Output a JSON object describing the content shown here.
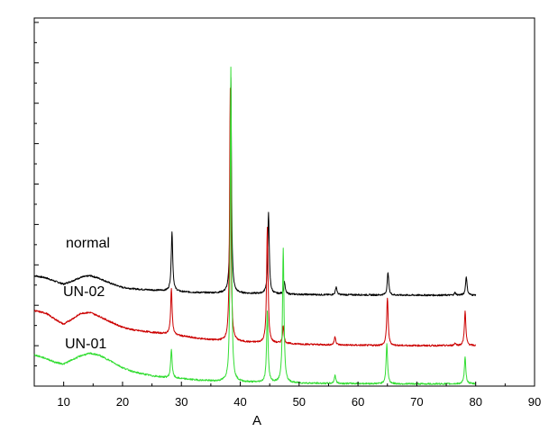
{
  "chart_data": {
    "type": "line",
    "title": "",
    "xlabel": "A",
    "ylabel": "",
    "xlim": [
      5,
      90
    ],
    "ylim": [
      0,
      100
    ],
    "xticks": [
      10,
      20,
      30,
      40,
      50,
      60,
      70,
      80,
      90
    ],
    "x_range": [
      5,
      80
    ],
    "grid": false,
    "legend": "none",
    "series": [
      {
        "name": "normal",
        "color": "#000000",
        "baseline": 24.7,
        "points": [
          [
            5,
            30.0
          ],
          [
            7,
            29.4
          ],
          [
            8.5,
            28.5
          ],
          [
            10,
            27.7
          ],
          [
            11.5,
            28.6
          ],
          [
            13,
            29.6
          ],
          [
            14.5,
            30.0
          ],
          [
            16,
            29.3
          ],
          [
            18,
            27.9
          ],
          [
            20,
            26.8
          ],
          [
            22,
            26.4
          ],
          [
            25,
            26.1
          ],
          [
            27.5,
            25.9
          ],
          [
            28.3,
            26.0
          ],
          [
            30,
            25.6
          ],
          [
            33,
            25.4
          ],
          [
            36,
            25.3
          ],
          [
            38,
            25.3
          ],
          [
            40,
            25.2
          ],
          [
            43,
            25.1
          ],
          [
            46,
            25.0
          ],
          [
            50,
            24.9
          ],
          [
            55,
            24.8
          ],
          [
            60,
            24.8
          ],
          [
            65,
            24.7
          ],
          [
            70,
            24.7
          ],
          [
            75,
            24.7
          ],
          [
            80,
            24.7
          ]
        ],
        "peaks": [
          {
            "x": 28.4,
            "y": 42.0,
            "w": 0.15
          },
          {
            "x": 38.4,
            "y": 83.7,
            "w": 0.13
          },
          {
            "x": 44.8,
            "y": 47.2,
            "w": 0.15
          },
          {
            "x": 47.5,
            "y": 28.3,
            "w": 0.15
          },
          {
            "x": 56.3,
            "y": 27.0,
            "w": 0.15
          },
          {
            "x": 65.1,
            "y": 31.0,
            "w": 0.15
          },
          {
            "x": 76.5,
            "y": 25.4,
            "w": 0.15
          },
          {
            "x": 78.4,
            "y": 29.8,
            "w": 0.15
          }
        ]
      },
      {
        "name": "UN-02",
        "color": "#cc0000",
        "baseline": 11.0,
        "points": [
          [
            5,
            20.5
          ],
          [
            7,
            19.8
          ],
          [
            8.5,
            18.2
          ],
          [
            10,
            16.8
          ],
          [
            11.5,
            18.3
          ],
          [
            13,
            19.8
          ],
          [
            14.5,
            20.0
          ],
          [
            16,
            19.0
          ],
          [
            18,
            17.4
          ],
          [
            20,
            16.0
          ],
          [
            22,
            15.2
          ],
          [
            25,
            14.6
          ],
          [
            27.5,
            14.2
          ],
          [
            28.3,
            14.0
          ],
          [
            30,
            13.6
          ],
          [
            33,
            12.9
          ],
          [
            36,
            12.4
          ],
          [
            38,
            12.2
          ],
          [
            40,
            12.0
          ],
          [
            43,
            11.8
          ],
          [
            46,
            11.6
          ],
          [
            50,
            11.4
          ],
          [
            55,
            11.2
          ],
          [
            60,
            11.1
          ],
          [
            65,
            11.0
          ],
          [
            70,
            11.0
          ],
          [
            75,
            11.0
          ],
          [
            80,
            11.0
          ]
        ],
        "peaks": [
          {
            "x": 28.3,
            "y": 26.5,
            "w": 0.15
          },
          {
            "x": 38.3,
            "y": 80.8,
            "w": 0.13
          },
          {
            "x": 44.6,
            "y": 42.9,
            "w": 0.15
          },
          {
            "x": 47.3,
            "y": 16.2,
            "w": 0.15
          },
          {
            "x": 56.1,
            "y": 13.5,
            "w": 0.15
          },
          {
            "x": 65.0,
            "y": 24.0,
            "w": 0.15
          },
          {
            "x": 76.5,
            "y": 11.7,
            "w": 0.15
          },
          {
            "x": 78.2,
            "y": 20.3,
            "w": 0.15
          }
        ]
      },
      {
        "name": "UN-01",
        "color": "#33dd33",
        "baseline": 0.6,
        "points": [
          [
            5,
            8.5
          ],
          [
            7,
            7.5
          ],
          [
            8.5,
            6.5
          ],
          [
            10,
            6.0
          ],
          [
            11.5,
            7.2
          ],
          [
            13,
            8.3
          ],
          [
            14.5,
            8.9
          ],
          [
            16,
            8.4
          ],
          [
            18,
            6.8
          ],
          [
            20,
            5.0
          ],
          [
            22,
            3.8
          ],
          [
            25,
            2.8
          ],
          [
            27.5,
            2.3
          ],
          [
            28.3,
            2.2
          ],
          [
            30,
            2.0
          ],
          [
            33,
            1.6
          ],
          [
            36,
            1.3
          ],
          [
            38,
            1.2
          ],
          [
            40,
            1.1
          ],
          [
            43,
            1.0
          ],
          [
            46,
            0.9
          ],
          [
            50,
            0.8
          ],
          [
            55,
            0.7
          ],
          [
            60,
            0.7
          ],
          [
            65,
            0.6
          ],
          [
            70,
            0.6
          ],
          [
            75,
            0.6
          ],
          [
            80,
            0.6
          ]
        ],
        "peaks": [
          {
            "x": 28.3,
            "y": 10.0,
            "w": 0.15
          },
          {
            "x": 38.4,
            "y": 86.8,
            "w": 0.13
          },
          {
            "x": 44.6,
            "y": 20.1,
            "w": 0.15
          },
          {
            "x": 47.3,
            "y": 37.6,
            "w": 0.15
          },
          {
            "x": 56.1,
            "y": 3.0,
            "w": 0.15
          },
          {
            "x": 64.9,
            "y": 11.5,
            "w": 0.15
          },
          {
            "x": 78.2,
            "y": 7.8,
            "w": 0.15
          }
        ]
      }
    ]
  }
}
